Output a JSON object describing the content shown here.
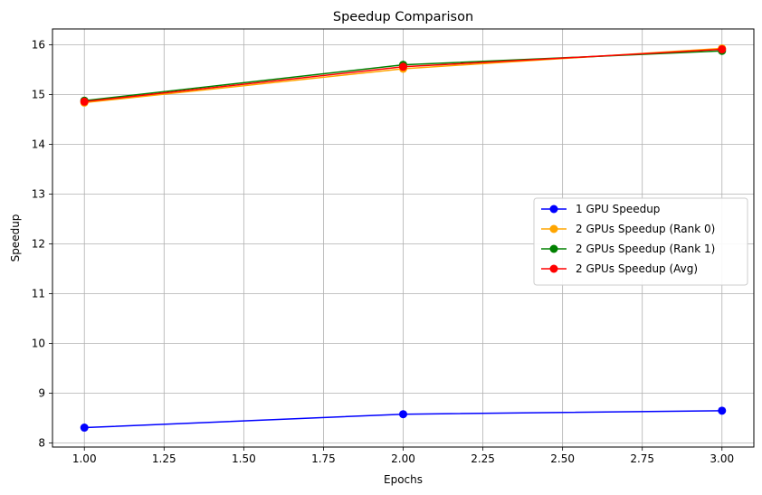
{
  "chart_data": {
    "type": "line",
    "title": "Speedup Comparison",
    "xlabel": "Epochs",
    "ylabel": "Speedup",
    "x": [
      1.0,
      2.0,
      3.0
    ],
    "xlim": [
      0.9,
      3.1
    ],
    "ylim": [
      7.92,
      16.32
    ],
    "xticks": [
      "1.00",
      "1.25",
      "1.50",
      "1.75",
      "2.00",
      "2.25",
      "2.50",
      "2.75",
      "3.00"
    ],
    "xtick_values": [
      1.0,
      1.25,
      1.5,
      1.75,
      2.0,
      2.25,
      2.5,
      2.75,
      3.0
    ],
    "yticks": [
      "8",
      "9",
      "10",
      "11",
      "12",
      "13",
      "14",
      "15",
      "16"
    ],
    "ytick_values": [
      8,
      9,
      10,
      11,
      12,
      13,
      14,
      15,
      16
    ],
    "grid": true,
    "legend_position": "center-right",
    "series": [
      {
        "name": "1 GPU Speedup",
        "color": "#0000ff",
        "values": [
          8.31,
          8.58,
          8.65
        ]
      },
      {
        "name": "2 GPUs Speedup (Rank 0)",
        "color": "#ffa500",
        "values": [
          14.84,
          15.52,
          15.93
        ]
      },
      {
        "name": "2 GPUs Speedup (Rank 1)",
        "color": "#008000",
        "values": [
          14.88,
          15.6,
          15.88
        ]
      },
      {
        "name": "2 GPUs Speedup (Avg)",
        "color": "#ff0000",
        "values": [
          14.86,
          15.56,
          15.91
        ]
      }
    ]
  }
}
